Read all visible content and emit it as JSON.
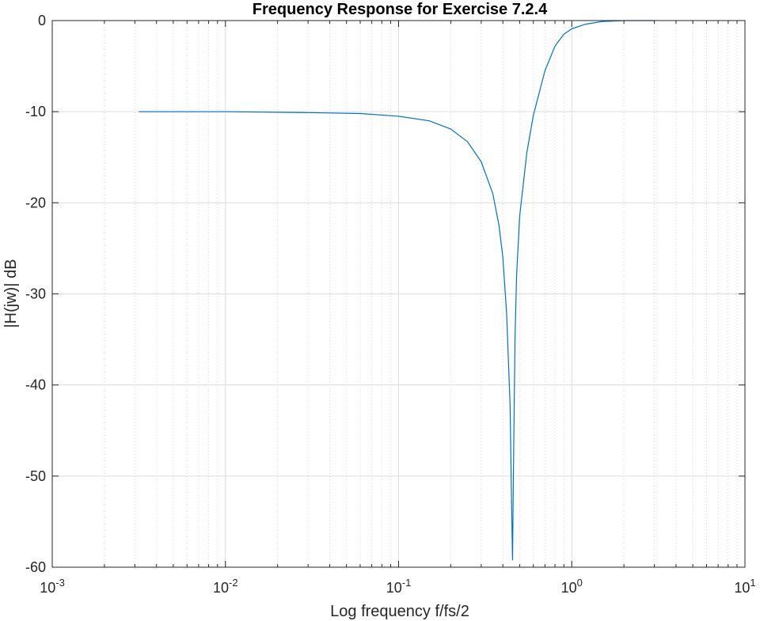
{
  "chart_data": {
    "type": "line",
    "title": "Frequency Response for Exercise 7.2.4",
    "xlabel": "Log frequency f/fs/2",
    "ylabel": "|H(jw)| dB",
    "xscale": "log",
    "xlim": [
      0.001,
      10
    ],
    "ylim": [
      -60,
      0
    ],
    "grid": true,
    "minor_grid": true,
    "x_ticks": [
      {
        "base": "10",
        "exp": "-3",
        "value": 0.001
      },
      {
        "base": "10",
        "exp": "-2",
        "value": 0.01
      },
      {
        "base": "10",
        "exp": "-1",
        "value": 0.1
      },
      {
        "base": "10",
        "exp": "0",
        "value": 1
      },
      {
        "base": "10",
        "exp": "1",
        "value": 10
      }
    ],
    "y_ticks": [
      "0",
      "-10",
      "-20",
      "-30",
      "-40",
      "-50",
      "-60"
    ],
    "series": [
      {
        "color": "#0072bd",
        "x": [
          0.00316,
          0.01,
          0.03,
          0.06,
          0.1,
          0.15,
          0.2,
          0.25,
          0.3,
          0.35,
          0.38,
          0.4,
          0.42,
          0.44,
          0.45,
          0.455,
          0.46,
          0.47,
          0.48,
          0.5,
          0.55,
          0.6,
          0.7,
          0.8,
          0.9,
          1.0,
          1.2,
          1.5,
          2.0,
          3.0
        ],
        "y": [
          -10.0,
          -10.0,
          -10.1,
          -10.2,
          -10.5,
          -11.0,
          -11.9,
          -13.3,
          -15.5,
          -19.0,
          -22.5,
          -26.0,
          -32.0,
          -42.0,
          -54.0,
          -59.2,
          -50.0,
          -35.0,
          -28.0,
          -21.5,
          -14.5,
          -10.4,
          -5.5,
          -2.8,
          -1.5,
          -0.9,
          -0.4,
          -0.1,
          0.0,
          0.0
        ]
      }
    ]
  }
}
